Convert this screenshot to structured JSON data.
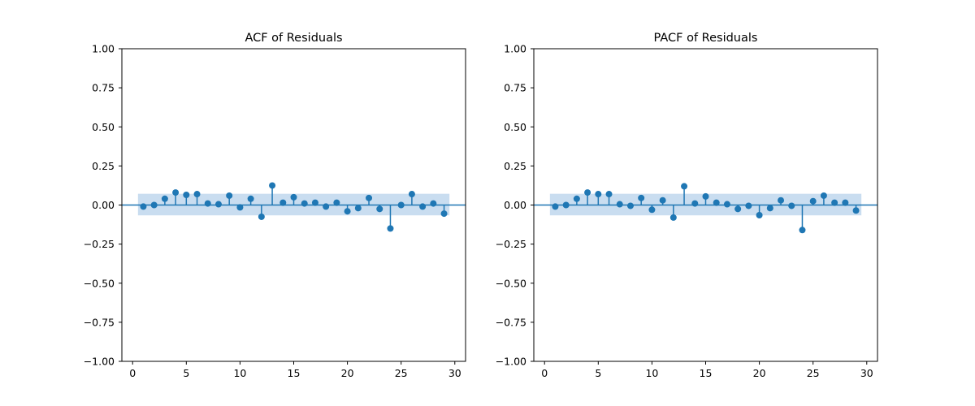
{
  "chart_data": [
    {
      "type": "stem",
      "title": "ACF of Residuals",
      "xlabel": "",
      "ylabel": "",
      "xlim": [
        -1,
        31
      ],
      "ylim": [
        -1.0,
        1.0
      ],
      "x_ticks": [
        "0",
        "5",
        "10",
        "15",
        "20",
        "25",
        "30"
      ],
      "y_ticks": [
        "−1.00",
        "−0.75",
        "−0.50",
        "−0.25",
        "0.00",
        "0.25",
        "0.50",
        "0.75",
        "1.00"
      ],
      "confidence_band": [
        -0.066,
        0.072
      ],
      "lags": [
        1,
        2,
        3,
        4,
        5,
        6,
        7,
        8,
        9,
        10,
        11,
        12,
        13,
        14,
        15,
        16,
        17,
        18,
        19,
        20,
        21,
        22,
        23,
        24,
        25,
        26,
        27,
        28,
        29
      ],
      "values": [
        -0.01,
        0.0,
        0.04,
        0.08,
        0.065,
        0.07,
        0.01,
        0.005,
        0.06,
        -0.015,
        0.04,
        -0.075,
        0.125,
        0.015,
        0.05,
        0.01,
        0.015,
        -0.01,
        0.015,
        -0.04,
        -0.02,
        0.045,
        -0.025,
        -0.15,
        0.0,
        0.07,
        -0.01,
        0.01,
        -0.055
      ],
      "color": "#1f77b4",
      "band_color": "#c6dbef",
      "grid": false
    },
    {
      "type": "stem",
      "title": "PACF of Residuals",
      "xlabel": "",
      "ylabel": "",
      "xlim": [
        -1,
        31
      ],
      "ylim": [
        -1.0,
        1.0
      ],
      "x_ticks": [
        "0",
        "5",
        "10",
        "15",
        "20",
        "25",
        "30"
      ],
      "y_ticks": [
        "−1.00",
        "−0.75",
        "−0.50",
        "−0.25",
        "0.00",
        "0.25",
        "0.50",
        "0.75",
        "1.00"
      ],
      "confidence_band": [
        -0.066,
        0.072
      ],
      "lags": [
        1,
        2,
        3,
        4,
        5,
        6,
        7,
        8,
        9,
        10,
        11,
        12,
        13,
        14,
        15,
        16,
        17,
        18,
        19,
        20,
        21,
        22,
        23,
        24,
        25,
        26,
        27,
        28,
        29
      ],
      "values": [
        -0.01,
        0.0,
        0.04,
        0.08,
        0.07,
        0.07,
        0.005,
        -0.005,
        0.045,
        -0.03,
        0.03,
        -0.08,
        0.12,
        0.01,
        0.055,
        0.015,
        0.005,
        -0.025,
        -0.005,
        -0.065,
        -0.02,
        0.03,
        -0.005,
        -0.16,
        0.025,
        0.06,
        0.015,
        0.015,
        -0.035
      ],
      "color": "#1f77b4",
      "band_color": "#c6dbef",
      "grid": false
    }
  ]
}
